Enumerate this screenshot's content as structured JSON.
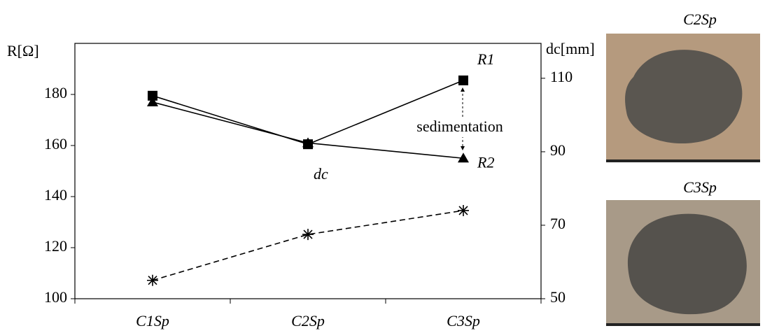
{
  "chart_data": {
    "type": "line",
    "y_label": "R[Ω]",
    "y2_label": "dc[mm]",
    "categories": [
      "C1Sp",
      "C2Sp",
      "C3Sp"
    ],
    "series": [
      {
        "name": "R1",
        "color": "#000000",
        "marker": "square",
        "values": [
          179.5,
          160.5,
          185.5
        ]
      },
      {
        "name": "R2",
        "color": "#000000",
        "marker": "triangle",
        "values": [
          177,
          161,
          155
        ]
      },
      {
        "name": "dc",
        "color": "#000000",
        "marker": "star",
        "dashed": true,
        "axis": "y2",
        "values": [
          55,
          67.5,
          74
        ]
      }
    ],
    "annotations": [
      "sedimentation"
    ],
    "ylim": [
      100,
      200
    ],
    "yticks": [
      100,
      120,
      140,
      160,
      180
    ],
    "y2lim": [
      50,
      119.5
    ],
    "y2ticks": [
      50,
      70,
      90,
      110
    ]
  },
  "photos": [
    {
      "caption": "C2Sp"
    },
    {
      "caption": "C3Sp"
    }
  ]
}
